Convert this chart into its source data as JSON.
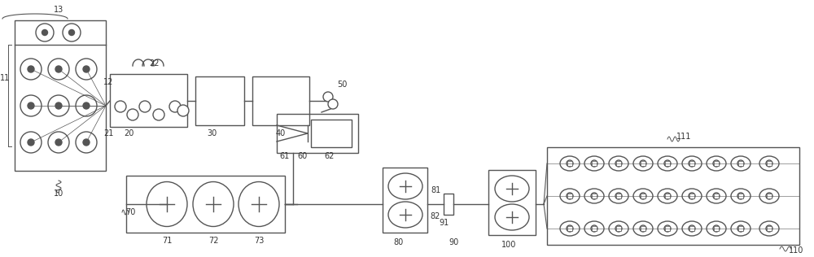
{
  "bg_color": "#ffffff",
  "line_color": "#555555",
  "line_width": 1.0,
  "fig_width": 10.0,
  "fig_height": 3.16,
  "dpi": 100
}
